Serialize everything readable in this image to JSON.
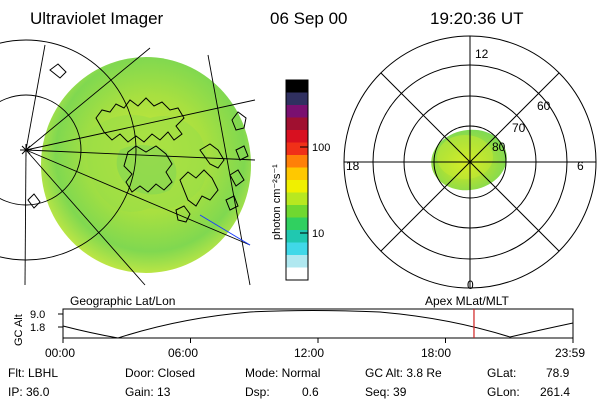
{
  "header": {
    "title": "Ultraviolet Imager",
    "date": "06 Sep 00",
    "time": "19:20:36 UT"
  },
  "colorbar": {
    "label": "photon cm⁻²s⁻¹",
    "ticks": [
      {
        "label": "100",
        "value": 100
      },
      {
        "label": "10",
        "value": 10
      }
    ],
    "colors": [
      "#000000",
      "#303060",
      "#7a1070",
      "#a01030",
      "#d81020",
      "#f03018",
      "#ff8008",
      "#ffc800",
      "#f0f000",
      "#b8e820",
      "#70d830",
      "#30d060",
      "#20c8b0",
      "#40d8e8",
      "#b0e8f0",
      "#ffffff"
    ]
  },
  "polar_plot": {
    "mlt_labels": [
      "12",
      "18",
      "6",
      "0"
    ],
    "lat_labels": [
      "60",
      "70",
      "80"
    ]
  },
  "labels": {
    "geographic": "Geographic Lat/Lon",
    "apex": "Apex MLat/MLT"
  },
  "alt_plot": {
    "ylabel": "GC Alt",
    "yticks": [
      "9.0",
      "1.8"
    ],
    "xticks": [
      "00:00",
      "06:00",
      "12:00",
      "18:00",
      "23:59"
    ],
    "current_time_hours": 19.34
  },
  "info": {
    "flt": "Flt: LBHL",
    "ip": "IP: 36.0",
    "door": "Door: Closed",
    "gain": "Gain: 13",
    "mode": "Mode: Normal",
    "dsp_label": "Dsp:",
    "dsp_value": "0.6",
    "gc_alt": "GC Alt: 3.8 Re",
    "seq": "Seq: 39",
    "glat_label": "GLat:",
    "glat_value": "78.9",
    "glon_label": "GLon:",
    "glon_value": "261.4"
  }
}
